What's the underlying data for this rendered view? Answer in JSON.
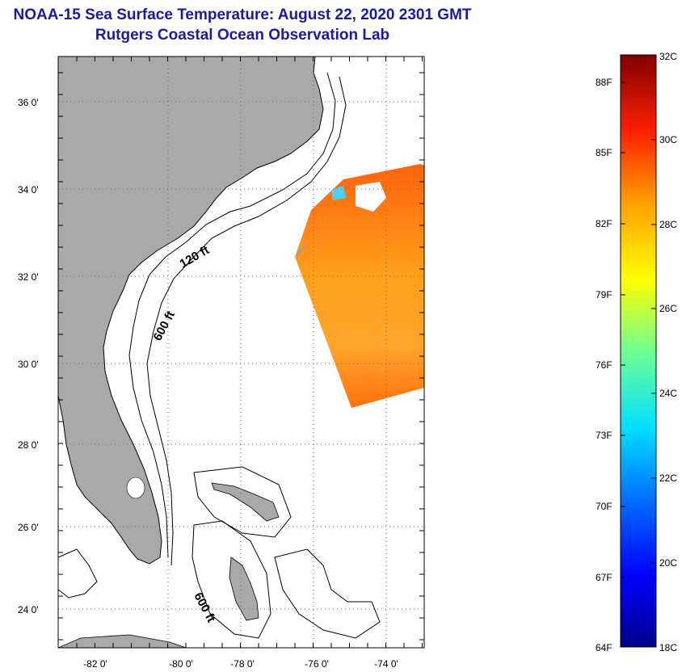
{
  "header": {
    "title": "NOAA-15 Sea Surface Temperature:  August 22, 2020 2301 GMT",
    "subtitle": "Rutgers Coastal Ocean Observation Lab"
  },
  "map": {
    "lon_ticks": [
      "-82 0'",
      "-80 0'",
      "-78 0'",
      "-76 0'",
      "-74 0'"
    ],
    "lat_ticks": [
      "36 0'",
      "34 0'",
      "32 0'",
      "30 0'",
      "28 0'",
      "26 0'",
      "24 0'"
    ],
    "contour_labels": [
      "120 ft",
      "600 ft",
      "600 ft"
    ]
  },
  "colorbar": {
    "fahrenheit": [
      "88F",
      "85F",
      "82F",
      "79F",
      "76F",
      "73F",
      "70F",
      "67F",
      "64F"
    ],
    "celsius": [
      "32C",
      "30C",
      "28C",
      "26C",
      "24C",
      "22C",
      "20C",
      "18C"
    ]
  },
  "colors": {
    "land": "#a9a9a9",
    "title": "#1a1aa6",
    "sst_warm": "#ff6a00",
    "sst_mid": "#ffb000"
  }
}
